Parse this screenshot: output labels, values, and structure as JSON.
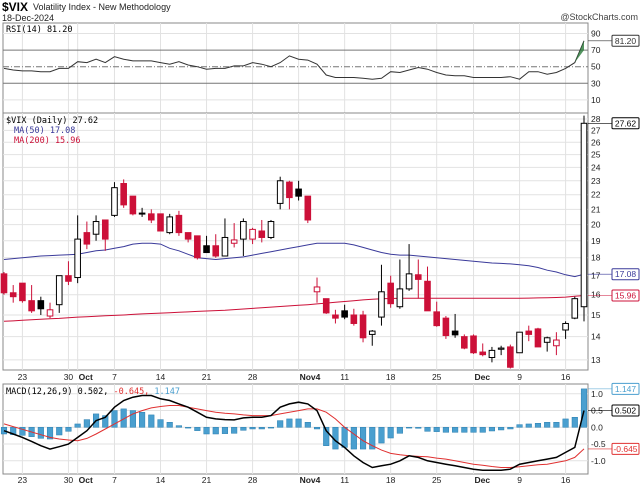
{
  "header": {
    "symbol": "$VIX",
    "name": "Volatility Index - New Methodology",
    "date": "18-Dec-2024",
    "watermark": "@StockCharts.com"
  },
  "colors": {
    "up": "#000000",
    "down": "#cc1038",
    "ma50": "#3a3a9a",
    "ma200": "#cc1038",
    "macd": "#000000",
    "signal": "#e03030",
    "histogram": "#4a9fcf",
    "grid": "#e2e2e2"
  },
  "chart_data": [
    {
      "type": "line",
      "title": "RSI(14) 81.20",
      "legend": "RSI(14) 81.20",
      "last_value_tag": "81.20",
      "ylim": [
        0,
        100
      ],
      "yticks": [
        "90",
        "70",
        "50",
        "30",
        "10"
      ],
      "reference_lines": [
        70,
        50,
        30
      ],
      "values": [
        48,
        46,
        45,
        45,
        44,
        44,
        48,
        48,
        56,
        55,
        59,
        55,
        62,
        59,
        57,
        57,
        57,
        55,
        53,
        56,
        52,
        50,
        47,
        48,
        48,
        51,
        51,
        55,
        53,
        50,
        55,
        63,
        59,
        58,
        53,
        40,
        37,
        37,
        37,
        36,
        35,
        36,
        44,
        43,
        46,
        49,
        47,
        43,
        40,
        39,
        39,
        37,
        37,
        37,
        37,
        38,
        35,
        44,
        44,
        41,
        43,
        48,
        55,
        81.2
      ]
    },
    {
      "type": "candlestick",
      "legend": "$VIX (Daily) 27.62",
      "scale": "log",
      "ylim": [
        12.5,
        28.5
      ],
      "yticks": [
        "13",
        "14",
        "15",
        "16",
        "17",
        "18",
        "19",
        "20",
        "21",
        "22",
        "23",
        "24",
        "25",
        "26",
        "27",
        "28"
      ],
      "last_value_tag": "27.62",
      "dates": [
        "2024-09-19",
        "2024-09-20",
        "2024-09-23",
        "2024-09-24",
        "2024-09-25",
        "2024-09-26",
        "2024-09-27",
        "2024-09-30",
        "2024-10-01",
        "2024-10-02",
        "2024-10-03",
        "2024-10-04",
        "2024-10-07",
        "2024-10-08",
        "2024-10-09",
        "2024-10-10",
        "2024-10-11",
        "2024-10-14",
        "2024-10-15",
        "2024-10-16",
        "2024-10-17",
        "2024-10-18",
        "2024-10-21",
        "2024-10-22",
        "2024-10-23",
        "2024-10-24",
        "2024-10-25",
        "2024-10-28",
        "2024-10-29",
        "2024-10-30",
        "2024-10-31",
        "2024-11-01",
        "2024-11-04",
        "2024-11-05",
        "2024-11-06",
        "2024-11-07",
        "2024-11-08",
        "2024-11-11",
        "2024-11-12",
        "2024-11-13",
        "2024-11-14",
        "2024-11-15",
        "2024-11-18",
        "2024-11-19",
        "2024-11-20",
        "2024-11-21",
        "2024-11-22",
        "2024-11-25",
        "2024-11-26",
        "2024-11-27",
        "2024-11-29",
        "2024-12-02",
        "2024-12-03",
        "2024-12-04",
        "2024-12-05",
        "2024-12-06",
        "2024-12-09",
        "2024-12-10",
        "2024-12-11",
        "2024-12-12",
        "2024-12-13",
        "2024-12-16",
        "2024-12-17",
        "2024-12-18"
      ],
      "ohlc": [
        [
          17.1,
          17.2,
          16.0,
          16.1
        ],
        [
          16.1,
          16.5,
          15.6,
          15.9
        ],
        [
          16.6,
          16.6,
          15.6,
          15.7
        ],
        [
          15.7,
          16.5,
          15.1,
          15.2
        ],
        [
          15.7,
          15.9,
          15.0,
          15.3
        ],
        [
          14.95,
          15.6,
          14.85,
          15.25
        ],
        [
          15.5,
          17.0,
          15.1,
          17.0
        ],
        [
          17.0,
          17.8,
          16.5,
          16.7
        ],
        [
          16.9,
          20.6,
          16.6,
          19.1
        ],
        [
          19.5,
          20.2,
          18.5,
          18.8
        ],
        [
          19.4,
          20.6,
          19.0,
          20.2
        ],
        [
          20.3,
          20.3,
          18.4,
          19.1
        ],
        [
          20.6,
          22.9,
          20.5,
          22.5
        ],
        [
          22.8,
          23.1,
          21.1,
          21.3
        ],
        [
          21.9,
          21.9,
          20.6,
          20.7
        ],
        [
          20.75,
          21.1,
          20.5,
          20.7
        ],
        [
          20.7,
          21.0,
          20.1,
          20.3
        ],
        [
          20.7,
          20.7,
          19.6,
          19.6
        ],
        [
          19.5,
          20.7,
          19.4,
          20.5
        ],
        [
          20.6,
          20.9,
          19.3,
          19.5
        ],
        [
          19.5,
          19.5,
          18.9,
          19.1
        ],
        [
          19.3,
          19.3,
          17.9,
          18.0
        ],
        [
          18.7,
          19.3,
          18.3,
          18.3
        ],
        [
          18.7,
          19.4,
          18.0,
          18.1
        ],
        [
          18.1,
          20.4,
          18.1,
          19.2
        ],
        [
          18.85,
          20.1,
          18.6,
          19.05
        ],
        [
          19.1,
          20.4,
          18.1,
          20.2
        ],
        [
          19.1,
          19.8,
          18.8,
          19.7
        ],
        [
          19.6,
          20.3,
          18.9,
          19.2
        ],
        [
          19.2,
          20.3,
          19.1,
          20.2
        ],
        [
          21.4,
          23.3,
          21.0,
          23.0
        ],
        [
          22.9,
          23.0,
          21.0,
          21.8
        ],
        [
          22.4,
          23.0,
          21.6,
          21.9
        ],
        [
          21.9,
          21.9,
          20.1,
          20.3
        ],
        [
          16.15,
          16.9,
          15.6,
          16.4
        ],
        [
          15.8,
          15.8,
          15.05,
          15.1
        ],
        [
          15.0,
          15.25,
          14.6,
          14.85
        ],
        [
          15.2,
          15.5,
          14.8,
          14.9
        ],
        [
          15.0,
          15.3,
          14.5,
          14.6
        ],
        [
          15.0,
          15.2,
          13.75,
          13.95
        ],
        [
          14.1,
          14.3,
          13.6,
          14.25
        ],
        [
          14.9,
          17.6,
          14.5,
          16.15
        ],
        [
          16.6,
          17.0,
          15.35,
          15.55
        ],
        [
          15.4,
          17.9,
          15.3,
          16.3
        ],
        [
          16.3,
          18.8,
          16.2,
          17.1
        ],
        [
          17.05,
          17.9,
          15.8,
          16.8
        ],
        [
          16.7,
          17.5,
          15.2,
          15.2
        ],
        [
          15.15,
          15.65,
          14.45,
          14.5
        ],
        [
          14.85,
          14.95,
          13.9,
          14.05
        ],
        [
          14.25,
          15.05,
          13.95,
          14.08
        ],
        [
          14.0,
          14.1,
          13.45,
          13.5
        ],
        [
          14.03,
          14.1,
          13.25,
          13.3
        ],
        [
          13.33,
          13.7,
          13.15,
          13.22
        ],
        [
          13.1,
          13.55,
          12.9,
          13.4
        ],
        [
          13.45,
          13.6,
          13.2,
          13.5
        ],
        [
          13.55,
          13.65,
          12.65,
          12.7
        ],
        [
          13.3,
          14.2,
          13.3,
          14.2
        ],
        [
          14.25,
          14.5,
          13.8,
          14.1
        ],
        [
          14.35,
          14.4,
          13.55,
          13.55
        ],
        [
          13.75,
          14.0,
          13.35,
          13.95
        ],
        [
          13.6,
          14.2,
          13.2,
          13.85
        ],
        [
          14.3,
          14.7,
          13.9,
          14.6
        ],
        [
          14.85,
          15.9,
          14.8,
          15.8
        ],
        [
          15.4,
          28.3,
          14.7,
          27.62
        ]
      ],
      "series": [
        {
          "name": "MA(50) 17.08",
          "last_value_tag": "17.08",
          "values": [
            17.9,
            17.95,
            18.0,
            18.05,
            18.1,
            18.12,
            18.15,
            18.17,
            18.2,
            18.3,
            18.4,
            18.45,
            18.55,
            18.65,
            18.8,
            18.85,
            18.85,
            18.8,
            18.55,
            18.4,
            18.2,
            18.0,
            17.95,
            17.9,
            17.95,
            18.0,
            18.05,
            18.15,
            18.25,
            18.35,
            18.45,
            18.55,
            18.65,
            18.75,
            18.85,
            18.85,
            18.85,
            18.85,
            18.75,
            18.6,
            18.45,
            18.3,
            18.2,
            18.15,
            18.15,
            18.1,
            18.05,
            18.0,
            17.95,
            17.9,
            17.85,
            17.8,
            17.75,
            17.7,
            17.68,
            17.65,
            17.6,
            17.55,
            17.45,
            17.3,
            17.2,
            17.05,
            16.95,
            17.08
          ]
        },
        {
          "name": "MA(200) 15.96",
          "last_value_tag": "15.96",
          "values": [
            14.7,
            14.72,
            14.75,
            14.77,
            14.8,
            14.82,
            14.84,
            14.87,
            14.9,
            14.92,
            14.94,
            14.96,
            14.98,
            15.0,
            15.03,
            15.05,
            15.07,
            15.09,
            15.11,
            15.13,
            15.15,
            15.17,
            15.19,
            15.21,
            15.23,
            15.26,
            15.29,
            15.32,
            15.35,
            15.38,
            15.41,
            15.44,
            15.47,
            15.5,
            15.54,
            15.58,
            15.62,
            15.66,
            15.7,
            15.74,
            15.77,
            15.8,
            15.81,
            15.82,
            15.82,
            15.82,
            15.82,
            15.82,
            15.82,
            15.82,
            15.82,
            15.82,
            15.82,
            15.82,
            15.82,
            15.82,
            15.82,
            15.83,
            15.84,
            15.85,
            15.86,
            15.88,
            15.92,
            15.96
          ]
        }
      ],
      "xticks": [
        {
          "date": "2024-09-23",
          "label": "23"
        },
        {
          "date": "2024-09-30",
          "label": "30"
        },
        {
          "date": "2024-10-01",
          "label": "Oct"
        },
        {
          "date": "2024-10-07",
          "label": "7"
        },
        {
          "date": "2024-10-14",
          "label": "14"
        },
        {
          "date": "2024-10-21",
          "label": "21"
        },
        {
          "date": "2024-10-28",
          "label": "28"
        },
        {
          "date": "2024-11-04",
          "label": "Nov4"
        },
        {
          "date": "2024-11-11",
          "label": "11"
        },
        {
          "date": "2024-11-18",
          "label": "18"
        },
        {
          "date": "2024-11-25",
          "label": "25"
        },
        {
          "date": "2024-12-02",
          "label": "Dec"
        },
        {
          "date": "2024-12-09",
          "label": "9"
        },
        {
          "date": "2024-12-16",
          "label": "16"
        }
      ]
    },
    {
      "type": "bar+line",
      "legend_prefix": "MACD(12,26,9) 0.502,",
      "legend_signal": " -0.645,",
      "legend_hist": " 1.147",
      "ylim": [
        -1.4,
        1.3
      ],
      "yticks": [
        "1.0",
        "0.5",
        "0.0",
        "-0.5",
        "-1.0"
      ],
      "tags": {
        "histogram": "1.147",
        "macd": "0.502",
        "signal": "-0.645"
      },
      "macd": [
        -0.1,
        -0.2,
        -0.3,
        -0.42,
        -0.55,
        -0.65,
        -0.58,
        -0.5,
        -0.3,
        -0.1,
        0.2,
        0.3,
        0.6,
        0.8,
        0.9,
        0.95,
        0.95,
        0.85,
        0.8,
        0.7,
        0.6,
        0.45,
        0.3,
        0.25,
        0.23,
        0.22,
        0.28,
        0.3,
        0.3,
        0.35,
        0.6,
        0.7,
        0.75,
        0.7,
        0.5,
        -0.1,
        -0.4,
        -0.6,
        -0.85,
        -1.05,
        -1.2,
        -1.15,
        -1.1,
        -1.0,
        -0.85,
        -0.9,
        -1.0,
        -1.05,
        -1.1,
        -1.15,
        -1.2,
        -1.25,
        -1.28,
        -1.28,
        -1.28,
        -1.25,
        -1.1,
        -1.05,
        -1.0,
        -0.95,
        -0.9,
        -0.75,
        -0.6,
        0.502
      ],
      "signal": [
        0.1,
        0.02,
        -0.06,
        -0.14,
        -0.22,
        -0.3,
        -0.35,
        -0.38,
        -0.4,
        -0.33,
        -0.2,
        -0.05,
        0.1,
        0.25,
        0.4,
        0.5,
        0.58,
        0.62,
        0.65,
        0.65,
        0.6,
        0.55,
        0.5,
        0.45,
        0.42,
        0.4,
        0.37,
        0.35,
        0.35,
        0.35,
        0.4,
        0.45,
        0.5,
        0.55,
        0.55,
        0.45,
        0.25,
        0.0,
        -0.2,
        -0.4,
        -0.55,
        -0.68,
        -0.78,
        -0.82,
        -0.85,
        -0.87,
        -0.88,
        -0.92,
        -0.95,
        -1.0,
        -1.05,
        -1.1,
        -1.13,
        -1.17,
        -1.2,
        -1.2,
        -1.18,
        -1.15,
        -1.12,
        -1.1,
        -1.05,
        -1.0,
        -0.9,
        -0.645
      ]
    }
  ]
}
